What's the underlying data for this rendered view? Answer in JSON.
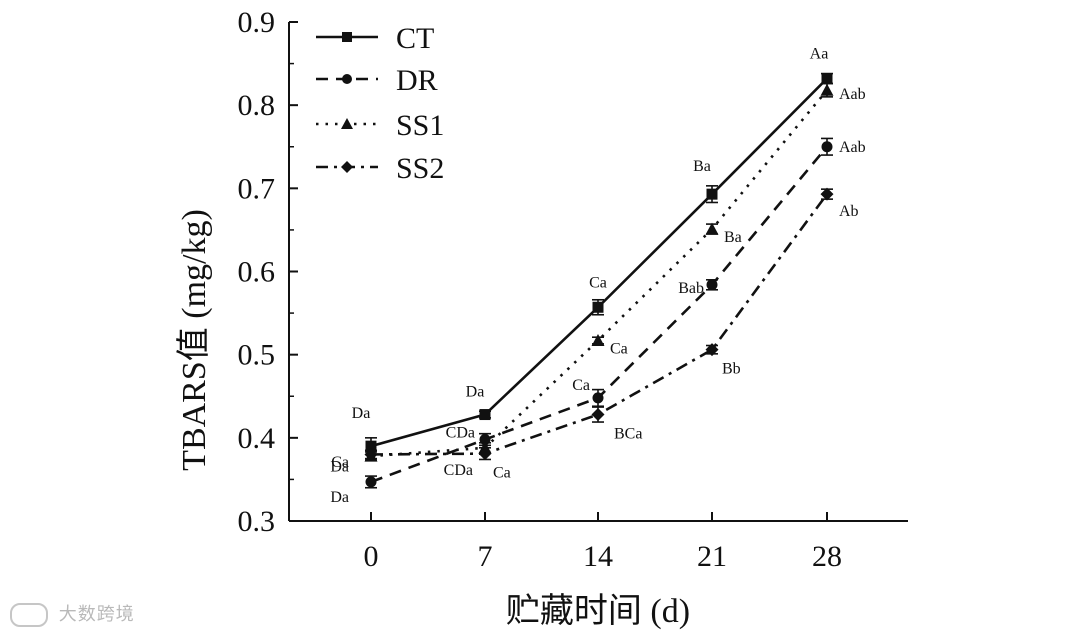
{
  "chart_data": {
    "type": "line",
    "title": "",
    "xlabel": "贮藏时间 (d)",
    "ylabel": "TBARS值 (mg/kg)",
    "categories": [
      "0",
      "7",
      "14",
      "21",
      "28"
    ],
    "ylim": [
      0.3,
      0.9
    ],
    "yticks": [
      "0.3",
      "0.4",
      "0.5",
      "0.6",
      "0.7",
      "0.8",
      "0.9"
    ],
    "ytick_values": [
      0.3,
      0.4,
      0.5,
      0.6,
      0.7,
      0.8,
      0.9
    ],
    "grid": false,
    "legend_position": "top-left",
    "series": [
      {
        "name": "CT",
        "marker": "square",
        "dash": "solid",
        "values": [
          0.39,
          0.428,
          0.557,
          0.693,
          0.832
        ],
        "errors": [
          0.01,
          0.004,
          0.009,
          0.01,
          0.006
        ],
        "labels": [
          "Da",
          "Da",
          "Ca",
          "Ba",
          "Aa"
        ]
      },
      {
        "name": "DR",
        "marker": "circle",
        "dash": "dash",
        "values": [
          0.347,
          0.398,
          0.448,
          0.584,
          0.75
        ],
        "errors": [
          0.007,
          0.007,
          0.01,
          0.006,
          0.01
        ],
        "labels": [
          "Da",
          "CDa",
          "Ca",
          "Bab",
          "Aab"
        ]
      },
      {
        "name": "SS1",
        "marker": "triangle",
        "dash": "dot",
        "values": [
          0.378,
          0.388,
          0.517,
          0.651,
          0.818
        ],
        "errors": [
          0.005,
          0.006,
          0.004,
          0.006,
          0.008
        ],
        "labels": [
          "Ca",
          "CDa",
          "Ca",
          "Ba",
          "Aab"
        ]
      },
      {
        "name": "SS2",
        "marker": "diamond",
        "dash": "dashdot",
        "values": [
          0.38,
          0.381,
          0.428,
          0.506,
          0.693
        ],
        "errors": [
          0.005,
          0.007,
          0.009,
          0.005,
          0.006
        ],
        "labels": [
          "Da",
          "Ca",
          "BCa",
          "Bb",
          "Ab"
        ]
      }
    ]
  },
  "watermark": {
    "text": "大数跨境",
    "icon": "logo-icon"
  }
}
